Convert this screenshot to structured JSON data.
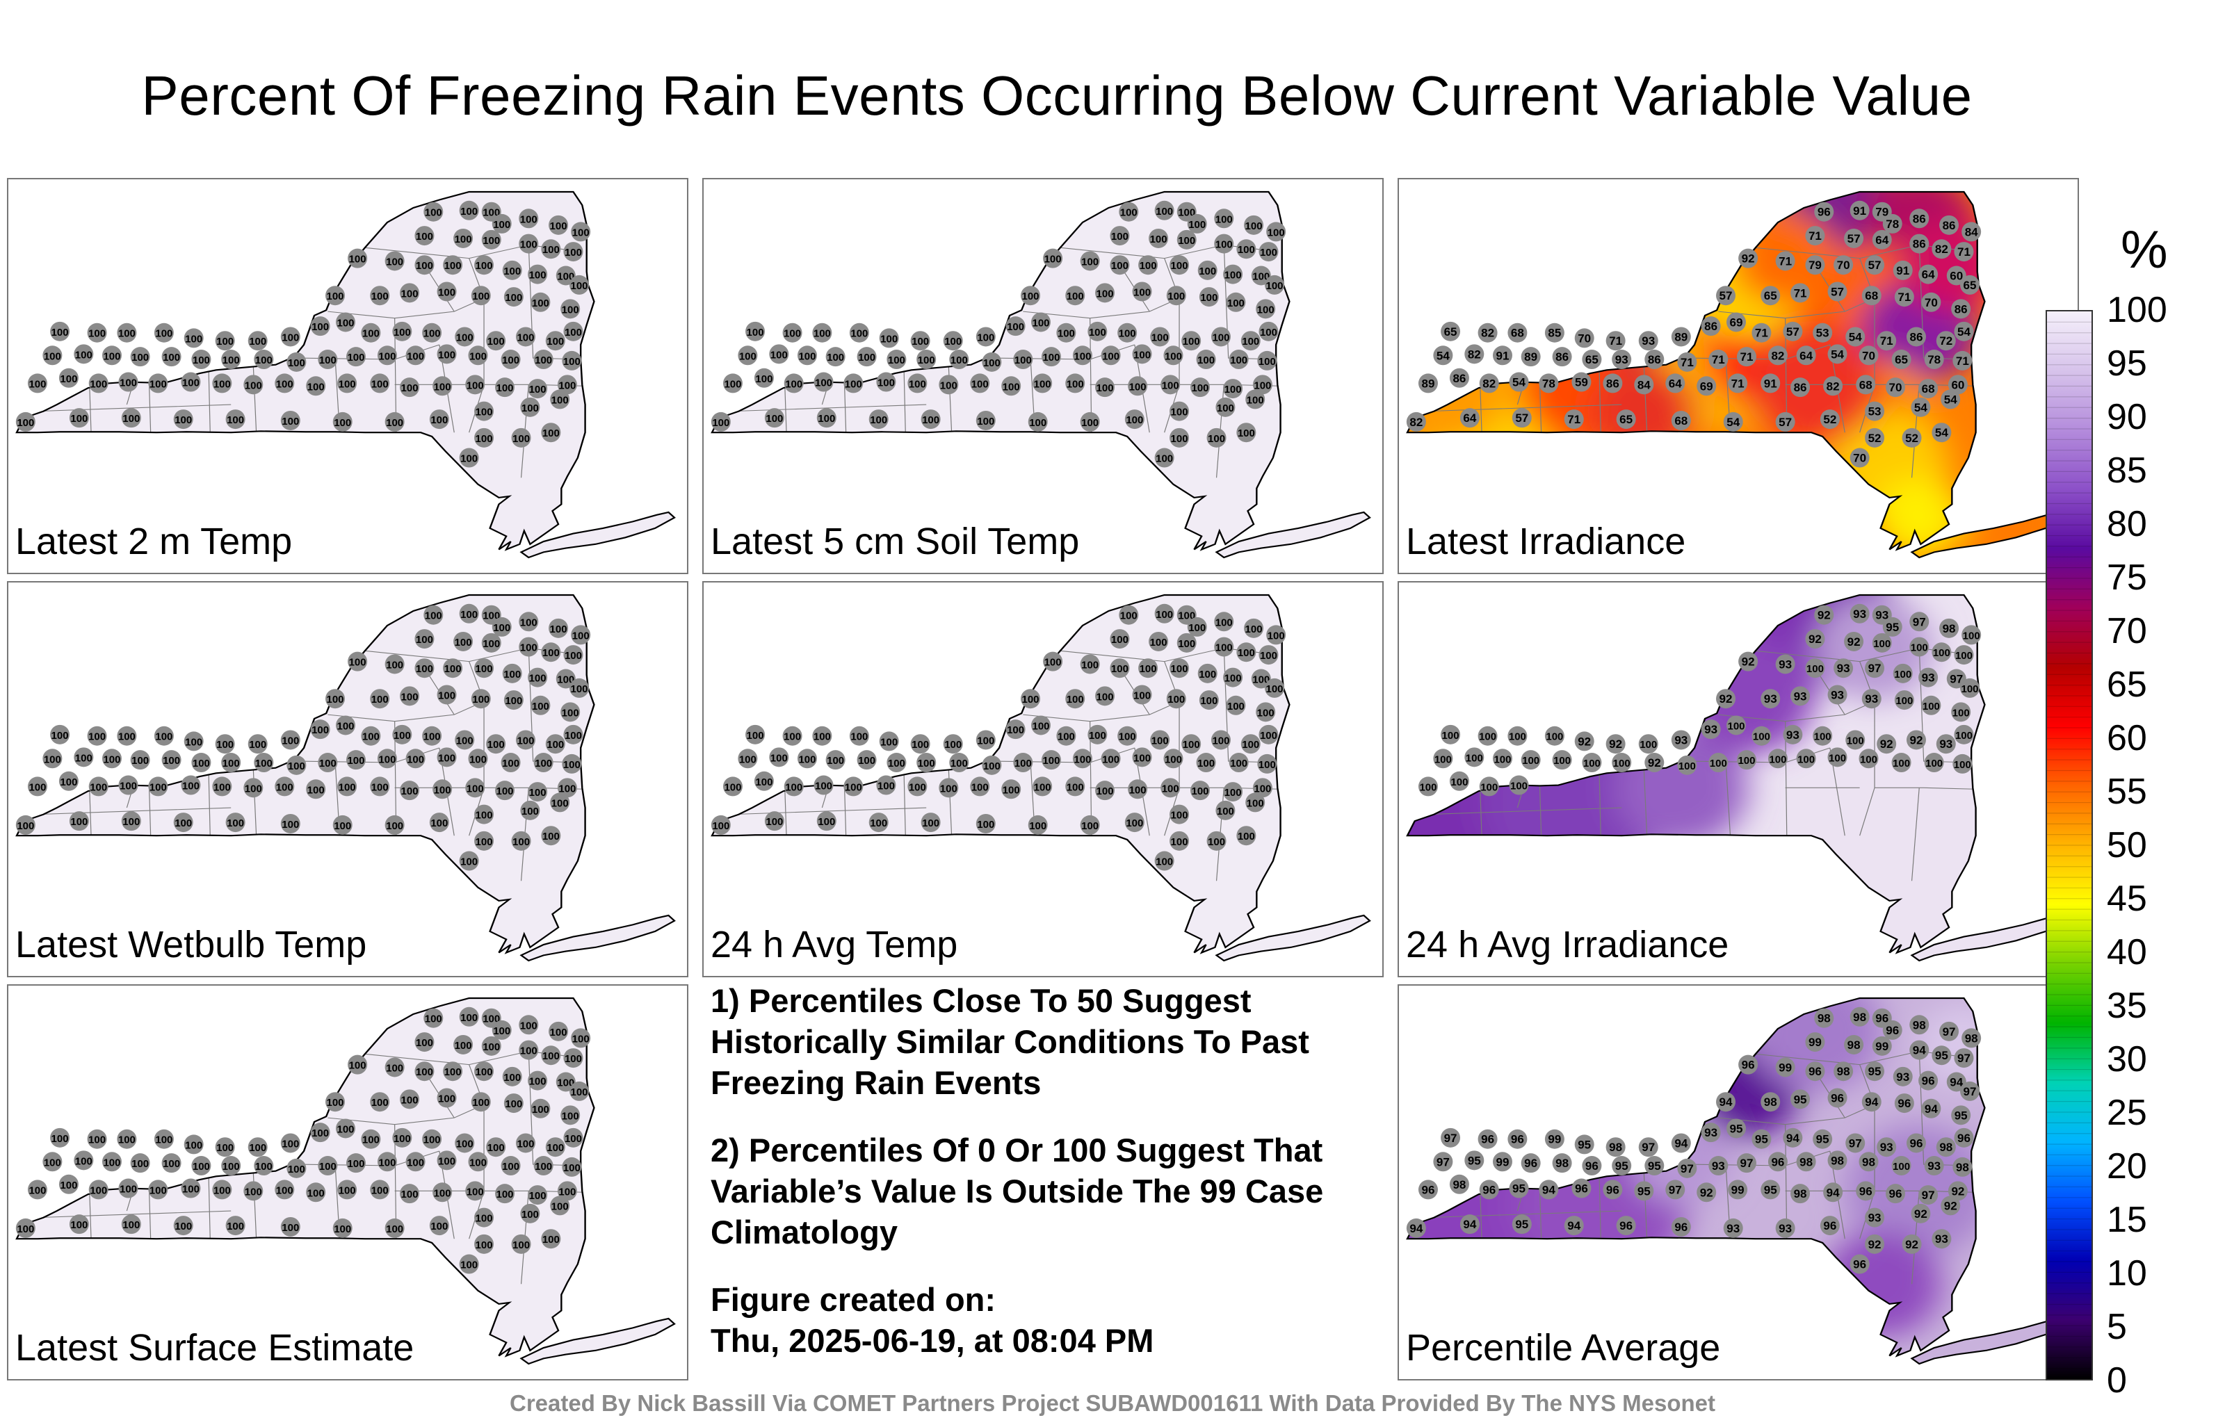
{
  "title": "Percent Of Freezing Rain Events Occurring Below Current Variable Value",
  "panels": [
    {
      "label": "Latest 2 m Temp",
      "fill": "#f1ecf5",
      "mode": "all100"
    },
    {
      "label": "Latest 5 cm Soil Temp",
      "fill": "#f1ecf5",
      "mode": "all100"
    },
    {
      "label": "Latest Irradiance",
      "fill": "#ff7f00",
      "mode": "irr",
      "station_values": [
        96,
        91,
        79,
        78,
        86,
        86,
        84,
        71,
        57,
        64,
        86,
        82,
        71,
        92,
        71,
        79,
        70,
        57,
        91,
        64,
        60,
        65,
        57,
        65,
        71,
        57,
        68,
        71,
        70,
        86,
        65,
        82,
        68,
        85,
        70,
        71,
        93,
        89,
        86,
        69,
        71,
        57,
        53,
        54,
        71,
        86,
        72,
        54,
        54,
        82,
        91,
        89,
        86,
        65,
        93,
        86,
        71,
        71,
        71,
        82,
        64,
        54,
        70,
        65,
        78,
        71,
        89,
        86,
        82,
        54,
        78,
        59,
        86,
        84,
        64,
        69,
        71,
        91,
        86,
        82,
        68,
        70,
        68,
        60,
        82,
        64,
        57,
        71,
        65,
        68,
        54,
        57,
        52,
        53,
        54,
        54,
        52,
        52,
        54,
        70
      ]
    },
    {
      "label": "Latest Wetbulb Temp",
      "fill": "#f1ecf5",
      "mode": "all100"
    },
    {
      "label": "24 h Avg Temp",
      "fill": "#f1ecf5",
      "mode": "all100"
    },
    {
      "label": "24 h Avg Irradiance",
      "fill": "#ece3f2",
      "mode": "avgirr",
      "station_values": [
        92,
        93,
        93,
        95,
        97,
        98,
        100,
        92,
        92,
        100,
        100,
        100,
        100,
        92,
        93,
        100,
        93,
        97,
        100,
        93,
        97,
        100,
        92,
        93,
        93,
        93,
        93,
        100,
        100,
        100,
        100,
        100,
        100,
        100,
        92,
        92,
        100,
        93,
        93,
        100,
        100,
        93,
        100,
        100,
        92,
        92,
        93,
        100,
        100,
        100,
        100,
        100,
        100,
        100,
        100,
        92,
        100,
        100,
        100,
        100,
        100,
        100,
        100,
        100,
        100,
        100,
        100,
        100,
        100,
        100
      ]
    },
    {
      "label": "Latest Surface Estimate",
      "fill": "#f1ecf5",
      "mode": "all100"
    },
    {
      "label": "Percentile Average",
      "fill": "#c9b2dc",
      "mode": "avg",
      "station_values": [
        98,
        98,
        96,
        96,
        98,
        97,
        98,
        99,
        98,
        99,
        94,
        95,
        97,
        96,
        99,
        96,
        98,
        95,
        93,
        96,
        94,
        97,
        94,
        98,
        95,
        96,
        94,
        96,
        94,
        95,
        97,
        96,
        96,
        99,
        95,
        98,
        97,
        94,
        93,
        95,
        95,
        94,
        95,
        97,
        93,
        96,
        98,
        96,
        97,
        95,
        99,
        96,
        98,
        96,
        95,
        95,
        97,
        93,
        97,
        96,
        98,
        98,
        98,
        100,
        93,
        98,
        96,
        98,
        96,
        95,
        94,
        96,
        96,
        95,
        97,
        92,
        99,
        95,
        98,
        94,
        96,
        96,
        97,
        92,
        94,
        94,
        95,
        94,
        96,
        96,
        93,
        93,
        96,
        93,
        92,
        92,
        92,
        92,
        93,
        96,
        96
      ]
    }
  ],
  "notes": [
    "1) Percentiles Close To 50 Suggest Historically Similar Conditions To Past Freezing Rain Events",
    "2) Percentiles Of 0 Or 100 Suggest That Variable’s Value Is Outside The 99 Case Climatology",
    "Figure created on:",
    "Thu, 2025-06-19, at 08:04 PM"
  ],
  "credit": "Created By Nick Bassill Via COMET Partners Project SUBAWD001611 With Data Provided By The NYS Mesonet",
  "colorbar": {
    "unit": "%",
    "ticks": [
      "100",
      "95",
      "90",
      "85",
      "80",
      "75",
      "70",
      "65",
      "60",
      "55",
      "50",
      "45",
      "40",
      "35",
      "30",
      "25",
      "20",
      "15",
      "10",
      "5",
      "0"
    ],
    "stops": [
      "#000000",
      "#3c0070",
      "#0000b4",
      "#0050ff",
      "#00b4ff",
      "#00d2b4",
      "#00b400",
      "#78d200",
      "#ffff00",
      "#ffb400",
      "#ff6400",
      "#ff0000",
      "#b40000",
      "#a0005a",
      "#5a0aa0",
      "#8c50c8",
      "#b48cdc",
      "#d7c3eb",
      "#f5f0fa"
    ]
  },
  "station_marker": {
    "fill": "#8a8a8a",
    "value_all": "100"
  }
}
